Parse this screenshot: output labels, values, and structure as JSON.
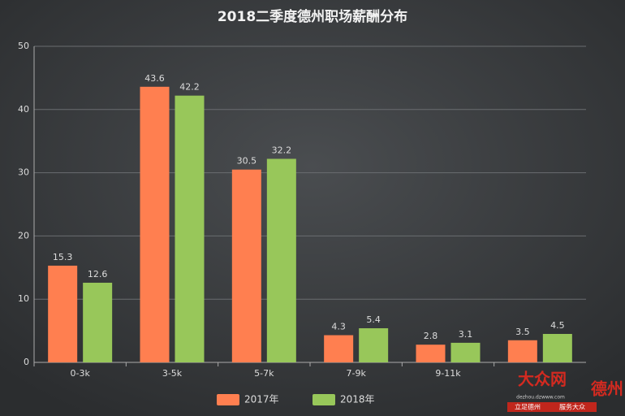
{
  "chart_data": {
    "type": "bar",
    "title": "2018二季度德州职场薪酬分布",
    "categories": [
      "0-3k",
      "3-5k",
      "5-7k",
      "7-9k",
      "9-11k",
      null
    ],
    "series": [
      {
        "name": "2017年",
        "color": "#ff7f50",
        "values": [
          15.3,
          43.6,
          30.5,
          4.3,
          2.8,
          3.5
        ]
      },
      {
        "name": "2018年",
        "color": "#98c75a",
        "values": [
          12.6,
          42.2,
          32.2,
          5.4,
          3.1,
          4.5
        ]
      }
    ],
    "ylim": [
      0,
      50
    ],
    "yticks": [
      0,
      10,
      20,
      30,
      40,
      50
    ],
    "grid": true,
    "legend": "bottom"
  },
  "watermark": {
    "logo": "大众网",
    "city": "德州",
    "url": "dezhou.dzwww.com",
    "slogan1": "立足德州",
    "slogan2": "服务大众"
  }
}
